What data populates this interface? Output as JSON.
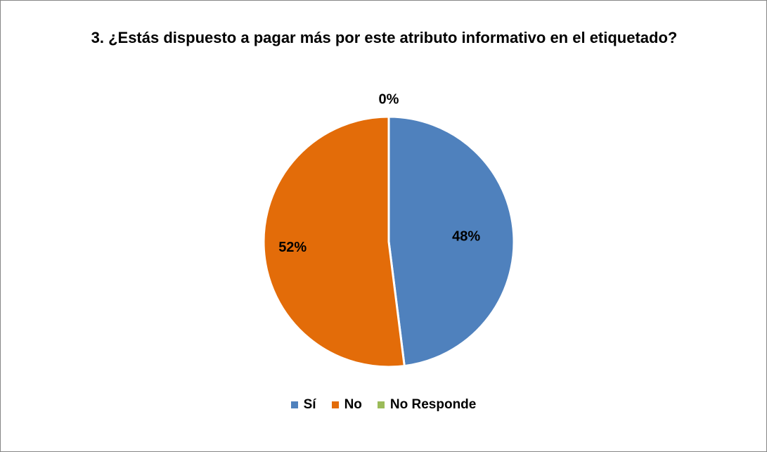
{
  "chart_data": {
    "type": "pie",
    "title": "3. ¿Estás dispuesto a pagar más por este atributo informativo en el etiquetado?",
    "categories": [
      "Sí",
      "No",
      "No Responde"
    ],
    "values": [
      48,
      52,
      0
    ],
    "value_labels": [
      "48%",
      "52%",
      "0%"
    ],
    "colors": [
      "#4f81bd",
      "#e36c09",
      "#9bbb59"
    ],
    "legend": "bottom"
  }
}
